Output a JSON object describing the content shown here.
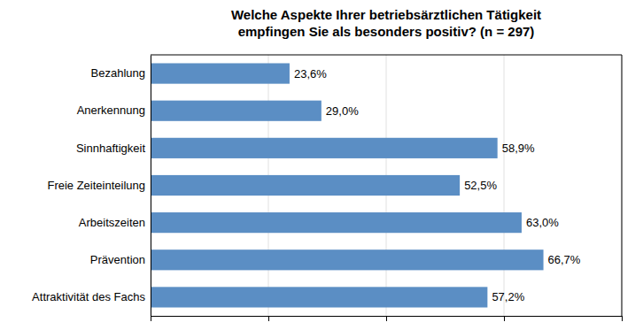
{
  "chart_data": {
    "type": "bar",
    "orientation": "horizontal",
    "title": "Welche Aspekte Ihrer betriebsärztlichen Tätigkeit\nempfingen Sie als besonders positiv? (n = 297)",
    "categories": [
      "Attraktivität des Fachs",
      "Prävention",
      "Arbeitszeiten",
      "Freie Zeiteinteilung",
      "Sinnhaftigkeit",
      "Anerkennung",
      "Bezahlung"
    ],
    "values": [
      57.2,
      66.7,
      63.0,
      52.5,
      58.9,
      29.0,
      23.6
    ],
    "value_labels": [
      "57,2%",
      "66,7%",
      "63,0%",
      "52,5%",
      "58,9%",
      "29,0%",
      "23,6%"
    ],
    "data_labels": true,
    "color": "#5b8ec4",
    "xlim": [
      0,
      80
    ],
    "xticks": [
      0,
      20,
      40,
      60,
      80
    ],
    "grid": true,
    "tick_labels": "y"
  }
}
